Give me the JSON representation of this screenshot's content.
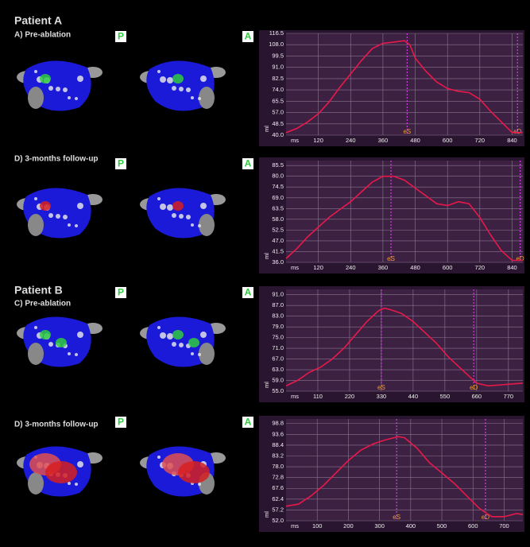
{
  "panels": [
    {
      "patient": "Patient A",
      "label": "A) Pre-ablation",
      "views": [
        "P",
        "A"
      ]
    },
    {
      "label": "D) 3-months follow-up",
      "views": [
        "P",
        "A"
      ]
    },
    {
      "patient": "Patient B",
      "label": "C) Pre-ablation",
      "views": [
        "P",
        "A"
      ]
    },
    {
      "label": "D) 3-months follow-up",
      "views": [
        "P",
        "A"
      ]
    }
  ],
  "chart_data": [
    {
      "type": "line",
      "x_label": "ms",
      "y_label": "ml",
      "color": "#e8194a",
      "x": [
        0,
        40,
        80,
        120,
        160,
        200,
        240,
        280,
        320,
        360,
        400,
        440,
        460,
        480,
        520,
        560,
        600,
        640,
        680,
        720,
        760,
        800,
        840,
        880
      ],
      "values": [
        42,
        45,
        50,
        56,
        65,
        76,
        86,
        96,
        105,
        109,
        110,
        111,
        108,
        98,
        88,
        80,
        75,
        73,
        72,
        67,
        58,
        50,
        42,
        42
      ],
      "xlim": [
        0,
        880
      ],
      "ylim": [
        40,
        116.5
      ],
      "xticks": [
        120,
        240,
        360,
        480,
        600,
        720,
        840
      ],
      "yticks": [
        {
          "value": 40,
          "label": "40.0"
        },
        {
          "value": 48.5,
          "label": "48.5"
        },
        {
          "value": 57,
          "label": "57.0"
        },
        {
          "value": 65.5,
          "label": "65.5"
        },
        {
          "value": 74,
          "label": "74.0"
        },
        {
          "value": 82.5,
          "label": "82.5"
        },
        {
          "value": 91,
          "label": "91.0"
        },
        {
          "value": 99.5,
          "label": "99.5"
        },
        {
          "value": 108,
          "label": "108.0"
        },
        {
          "value": 116.5,
          "label": "116.5"
        }
      ],
      "markers": [
        {
          "label": "eS",
          "x": 450
        },
        {
          "label": "eD",
          "x": 860
        }
      ]
    },
    {
      "type": "line",
      "x_label": "ms",
      "y_label": "ml",
      "color": "#e8194a",
      "x": [
        0,
        40,
        80,
        120,
        160,
        200,
        240,
        280,
        320,
        360,
        400,
        440,
        480,
        520,
        560,
        600,
        640,
        680,
        720,
        760,
        800,
        840,
        880
      ],
      "values": [
        38,
        43,
        49,
        54,
        59,
        63,
        67,
        72,
        77,
        80,
        80,
        78,
        74,
        70,
        66,
        65,
        67,
        66,
        59,
        50,
        42,
        37,
        37
      ],
      "xlim": [
        0,
        880
      ],
      "ylim": [
        36,
        88
      ],
      "xticks": [
        120,
        240,
        360,
        480,
        600,
        720,
        840
      ],
      "yticks": [
        {
          "value": 36,
          "label": "36.0"
        },
        {
          "value": 41.5,
          "label": "41.5"
        },
        {
          "value": 47,
          "label": "47.0"
        },
        {
          "value": 52.5,
          "label": "52.5"
        },
        {
          "value": 58,
          "label": "58.0"
        },
        {
          "value": 63.5,
          "label": "63.5"
        },
        {
          "value": 69,
          "label": "69.0"
        },
        {
          "value": 74.5,
          "label": "74.5"
        },
        {
          "value": 80,
          "label": "80.0"
        },
        {
          "value": 85.5,
          "label": "85.5"
        }
      ],
      "markers": [
        {
          "label": "eS",
          "x": 390
        },
        {
          "label": "eD",
          "x": 870
        }
      ]
    },
    {
      "type": "line",
      "x_label": "ms",
      "y_label": "ml",
      "color": "#e8194a",
      "x": [
        0,
        40,
        80,
        120,
        160,
        200,
        240,
        280,
        320,
        340,
        360,
        400,
        440,
        480,
        520,
        560,
        600,
        640,
        660,
        700,
        760,
        820
      ],
      "values": [
        57,
        59,
        62,
        64,
        67,
        71,
        76,
        81,
        85,
        86,
        85.5,
        84,
        81,
        77,
        73,
        68,
        64,
        60,
        58,
        57,
        57.5,
        58
      ],
      "xlim": [
        0,
        820
      ],
      "ylim": [
        55,
        93
      ],
      "xticks": [
        110,
        220,
        330,
        440,
        550,
        660,
        770
      ],
      "yticks": [
        {
          "value": 55,
          "label": "55.0"
        },
        {
          "value": 59,
          "label": "59.0"
        },
        {
          "value": 63,
          "label": "63.0"
        },
        {
          "value": 67,
          "label": "67.0"
        },
        {
          "value": 71,
          "label": "71.0"
        },
        {
          "value": 75,
          "label": "75.0"
        },
        {
          "value": 79,
          "label": "79.0"
        },
        {
          "value": 83,
          "label": "83.0"
        },
        {
          "value": 87,
          "label": "87.0"
        },
        {
          "value": 91,
          "label": "91.0"
        }
      ],
      "markers": [
        {
          "label": "eS",
          "x": 330
        },
        {
          "label": "eD",
          "x": 650
        }
      ]
    },
    {
      "type": "line",
      "x_label": "ms",
      "y_label": "ml",
      "color": "#e8194a",
      "x": [
        0,
        40,
        80,
        120,
        160,
        200,
        240,
        280,
        320,
        360,
        380,
        420,
        460,
        500,
        540,
        580,
        620,
        640,
        660,
        700,
        740,
        760
      ],
      "values": [
        59,
        60,
        64,
        69,
        75,
        81,
        86,
        89,
        91,
        92.5,
        92,
        87,
        80,
        75,
        70,
        64,
        58,
        56,
        54,
        54,
        55.5,
        55
      ],
      "xlim": [
        0,
        760
      ],
      "ylim": [
        52,
        101
      ],
      "xticks": [
        100,
        200,
        300,
        400,
        500,
        600,
        700
      ],
      "yticks": [
        {
          "value": 52,
          "label": "52.0"
        },
        {
          "value": 57.2,
          "label": "57.2"
        },
        {
          "value": 62.4,
          "label": "62.4"
        },
        {
          "value": 67.6,
          "label": "67.6"
        },
        {
          "value": 72.8,
          "label": "72.8"
        },
        {
          "value": 78,
          "label": "78.0"
        },
        {
          "value": 83.2,
          "label": "83.2"
        },
        {
          "value": 88.4,
          "label": "88.4"
        },
        {
          "value": 93.6,
          "label": "93.6"
        },
        {
          "value": 98.8,
          "label": "98.8"
        }
      ],
      "markers": [
        {
          "label": "eS",
          "x": 355
        },
        {
          "label": "eD",
          "x": 640
        }
      ]
    }
  ]
}
